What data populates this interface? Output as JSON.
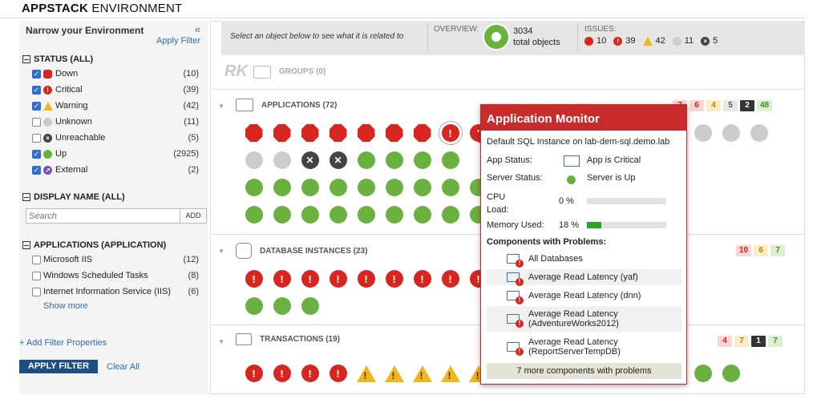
{
  "header": {
    "title_bold": "APPSTACK",
    "title_rest": " ENVIRONMENT"
  },
  "sidebar": {
    "heading": "Narrow your Environment",
    "collapse": "«",
    "apply_filter_link": "Apply Filter",
    "status_title": "STATUS (ALL)",
    "status_items": [
      {
        "label": "Down",
        "count": "(10)",
        "checked": true,
        "color": "#d7261f",
        "glyph": ""
      },
      {
        "label": "Critical",
        "count": "(39)",
        "checked": true,
        "color": "#d7261f",
        "glyph": "!"
      },
      {
        "label": "Warning",
        "count": "(42)",
        "checked": true,
        "color": "#f2b51c",
        "glyph": "!"
      },
      {
        "label": "Unknown",
        "count": "(11)",
        "checked": false,
        "color": "#cccccc",
        "glyph": ""
      },
      {
        "label": "Unreachable",
        "count": "(5)",
        "checked": false,
        "color": "#444444",
        "glyph": "×"
      },
      {
        "label": "Up",
        "count": "(2925)",
        "checked": true,
        "color": "#6ab140",
        "glyph": ""
      },
      {
        "label": "External",
        "count": "(2)",
        "checked": true,
        "color": "#7b4fb0",
        "glyph": "↗"
      }
    ],
    "display_title": "DISPLAY NAME (ALL)",
    "search_placeholder": "Search",
    "add_label": "ADD",
    "apps_title": "APPLICATIONS (APPLICATION)",
    "app_items": [
      {
        "label": "Microsoft IIS",
        "count": "(12)"
      },
      {
        "label": "Windows Scheduled Tasks",
        "count": "(8)"
      },
      {
        "label": "Internet Information Service (IIS)",
        "count": "(6)"
      }
    ],
    "show_more": "Show more",
    "add_filter_props": "+ Add Filter Properties",
    "apply_button": "APPLY FILTER",
    "clear_all": "Clear All"
  },
  "topbar": {
    "hint": "Select an object below to see what it is related to",
    "overview_label": "OVERVIEW:",
    "overview_count": "3034",
    "overview_text": "total objects",
    "issues_label": "ISSUES:",
    "issues": [
      {
        "kind": "down",
        "count": "10"
      },
      {
        "kind": "crit",
        "count": "39"
      },
      {
        "kind": "warn",
        "count": "42"
      },
      {
        "kind": "unk",
        "count": "11"
      },
      {
        "kind": "unr",
        "count": "5"
      }
    ]
  },
  "groups": {
    "groups_label": "GROUPS (0)",
    "applications_label": "APPLICATIONS (72)",
    "applications_pills": [
      {
        "c": "p-red",
        "v": "7"
      },
      {
        "c": "p-red",
        "v": "6"
      },
      {
        "c": "p-yel",
        "v": "4"
      },
      {
        "c": "p-gry",
        "v": "5"
      },
      {
        "c": "p-blk",
        "v": "2"
      },
      {
        "c": "p-grn",
        "v": "48"
      }
    ],
    "applications_nodes": [
      "down",
      "down",
      "down",
      "down",
      "down",
      "down",
      "down",
      "crit",
      "crit",
      "x",
      "x",
      "x",
      "x",
      "x",
      "x",
      "warn",
      "unk",
      "unk",
      "unk",
      "unk",
      "unk",
      "unr",
      "unr",
      "up",
      "up",
      "up",
      "up",
      "x",
      "x",
      "x",
      "x",
      "x",
      "x",
      "x",
      "x",
      "x",
      "x",
      "x",
      "up",
      "up",
      "up",
      "up",
      "up",
      "up",
      "up",
      "up",
      "up",
      "x",
      "x",
      "x",
      "x",
      "x",
      "x",
      "x",
      "x",
      "x",
      "x",
      "up",
      "up",
      "up",
      "up",
      "up",
      "up",
      "up",
      "up",
      "up"
    ],
    "db_label": "DATABASE INSTANCES (23)",
    "db_pills": [
      {
        "c": "p-red",
        "v": "10"
      },
      {
        "c": "p-yel",
        "v": "6"
      },
      {
        "c": "p-grn",
        "v": "7"
      }
    ],
    "db_nodes": [
      "crit",
      "crit",
      "crit",
      "crit",
      "crit",
      "crit",
      "crit",
      "crit",
      "crit",
      "x",
      "x",
      "x",
      "x",
      "x",
      "x",
      "x",
      "x",
      "x",
      "x",
      "up",
      "up",
      "up"
    ],
    "tx_label": "TRANSACTIONS (19)",
    "tx_pills": [
      {
        "c": "p-red",
        "v": "4"
      },
      {
        "c": "p-yel",
        "v": "7"
      },
      {
        "c": "p-blk",
        "v": "1"
      },
      {
        "c": "p-grn",
        "v": "7"
      }
    ],
    "tx_nodes": [
      "crit",
      "crit",
      "crit",
      "crit",
      "warn",
      "warn",
      "warn",
      "warn",
      "warn",
      "x",
      "x",
      "x",
      "x",
      "x",
      "x",
      "x",
      "up",
      "up"
    ]
  },
  "popup": {
    "title": "Application Monitor",
    "subtitle": "Default SQL Instance on lab-dem-sql.demo.lab",
    "app_status_label": "App Status:",
    "app_status_value": "App is Critical",
    "server_status_label": "Server Status:",
    "server_status_value": "Server is Up",
    "cpu_label": "CPU Load:",
    "cpu_value": "0 %",
    "cpu_fraction": 0.0,
    "mem_label": "Memory Used:",
    "mem_value": "18 %",
    "mem_fraction": 0.18,
    "components_title": "Components with Problems:",
    "components": [
      "All Databases",
      "Average Read Latency (yaf)",
      "Average Read Latency (dnn)",
      "Average Read Latency (AdventureWorks2012)",
      "Average Read Latency (ReportServerTempDB)"
    ],
    "more": "7 more components with problems"
  }
}
